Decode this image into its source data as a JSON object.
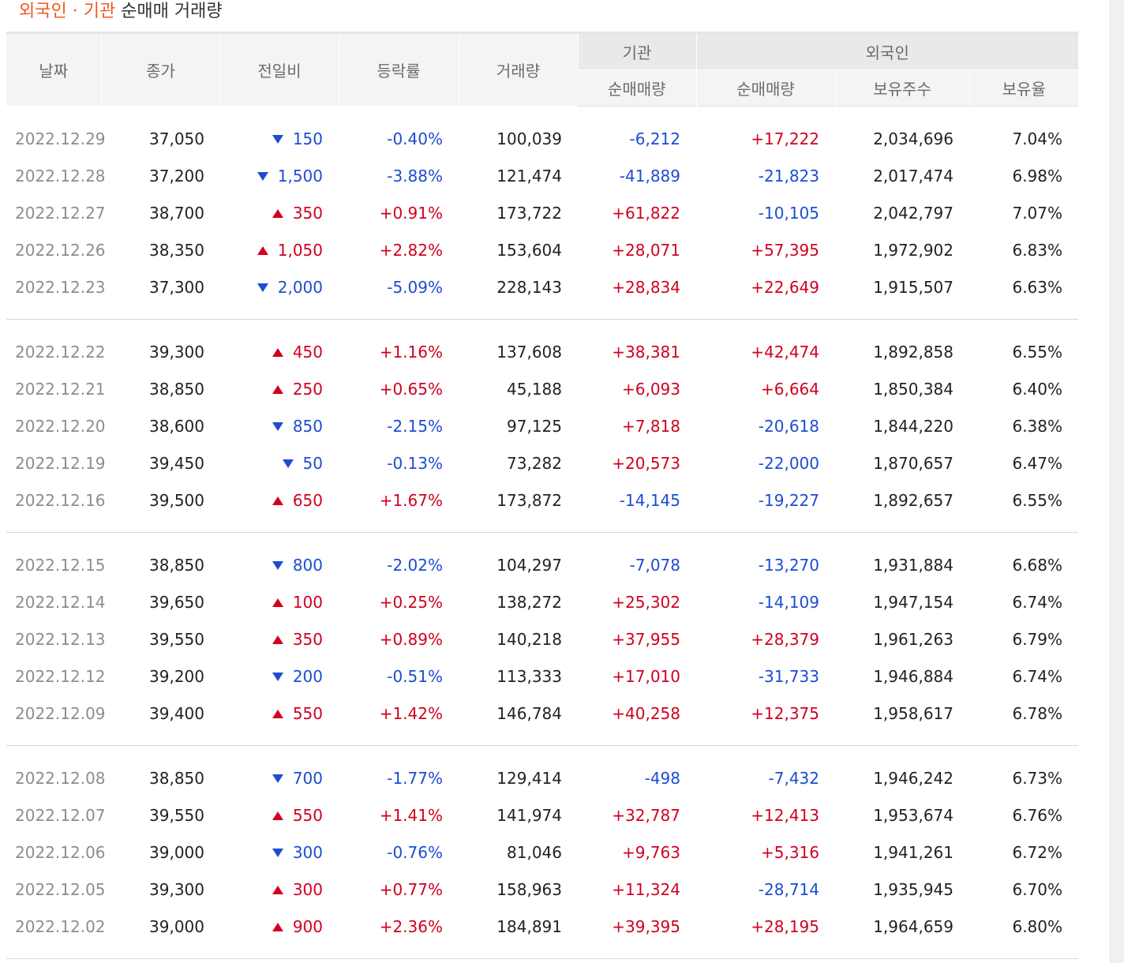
{
  "caption": {
    "highlight": "외국인 · 기관",
    "rest": "순매매 거래량"
  },
  "headers": {
    "date": "날짜",
    "close": "종가",
    "change": "전일비",
    "rate": "등락률",
    "volume": "거래량",
    "inst": "기관",
    "foreign": "외국인",
    "inst_net": "순매매량",
    "foreign_net": "순매매량",
    "foreign_hold": "보유주수",
    "foreign_ratio": "보유율"
  },
  "colors": {
    "up": "#d1001f",
    "down": "#1c4cd4",
    "accent": "#f15a22"
  },
  "groups": [
    [
      {
        "date": "2022.12.29",
        "close": "37,050",
        "dir": "down",
        "change": "150",
        "rate": "-0.40%",
        "volume": "100,039",
        "inst": "-6,212",
        "foreign": "+17,222",
        "hold": "2,034,696",
        "ratio": "7.04%"
      },
      {
        "date": "2022.12.28",
        "close": "37,200",
        "dir": "down",
        "change": "1,500",
        "rate": "-3.88%",
        "volume": "121,474",
        "inst": "-41,889",
        "foreign": "-21,823",
        "hold": "2,017,474",
        "ratio": "6.98%"
      },
      {
        "date": "2022.12.27",
        "close": "38,700",
        "dir": "up",
        "change": "350",
        "rate": "+0.91%",
        "volume": "173,722",
        "inst": "+61,822",
        "foreign": "-10,105",
        "hold": "2,042,797",
        "ratio": "7.07%"
      },
      {
        "date": "2022.12.26",
        "close": "38,350",
        "dir": "up",
        "change": "1,050",
        "rate": "+2.82%",
        "volume": "153,604",
        "inst": "+28,071",
        "foreign": "+57,395",
        "hold": "1,972,902",
        "ratio": "6.83%"
      },
      {
        "date": "2022.12.23",
        "close": "37,300",
        "dir": "down",
        "change": "2,000",
        "rate": "-5.09%",
        "volume": "228,143",
        "inst": "+28,834",
        "foreign": "+22,649",
        "hold": "1,915,507",
        "ratio": "6.63%"
      }
    ],
    [
      {
        "date": "2022.12.22",
        "close": "39,300",
        "dir": "up",
        "change": "450",
        "rate": "+1.16%",
        "volume": "137,608",
        "inst": "+38,381",
        "foreign": "+42,474",
        "hold": "1,892,858",
        "ratio": "6.55%"
      },
      {
        "date": "2022.12.21",
        "close": "38,850",
        "dir": "up",
        "change": "250",
        "rate": "+0.65%",
        "volume": "45,188",
        "inst": "+6,093",
        "foreign": "+6,664",
        "hold": "1,850,384",
        "ratio": "6.40%"
      },
      {
        "date": "2022.12.20",
        "close": "38,600",
        "dir": "down",
        "change": "850",
        "rate": "-2.15%",
        "volume": "97,125",
        "inst": "+7,818",
        "foreign": "-20,618",
        "hold": "1,844,220",
        "ratio": "6.38%"
      },
      {
        "date": "2022.12.19",
        "close": "39,450",
        "dir": "down",
        "change": "50",
        "rate": "-0.13%",
        "volume": "73,282",
        "inst": "+20,573",
        "foreign": "-22,000",
        "hold": "1,870,657",
        "ratio": "6.47%"
      },
      {
        "date": "2022.12.16",
        "close": "39,500",
        "dir": "up",
        "change": "650",
        "rate": "+1.67%",
        "volume": "173,872",
        "inst": "-14,145",
        "foreign": "-19,227",
        "hold": "1,892,657",
        "ratio": "6.55%"
      }
    ],
    [
      {
        "date": "2022.12.15",
        "close": "38,850",
        "dir": "down",
        "change": "800",
        "rate": "-2.02%",
        "volume": "104,297",
        "inst": "-7,078",
        "foreign": "-13,270",
        "hold": "1,931,884",
        "ratio": "6.68%"
      },
      {
        "date": "2022.12.14",
        "close": "39,650",
        "dir": "up",
        "change": "100",
        "rate": "+0.25%",
        "volume": "138,272",
        "inst": "+25,302",
        "foreign": "-14,109",
        "hold": "1,947,154",
        "ratio": "6.74%"
      },
      {
        "date": "2022.12.13",
        "close": "39,550",
        "dir": "up",
        "change": "350",
        "rate": "+0.89%",
        "volume": "140,218",
        "inst": "+37,955",
        "foreign": "+28,379",
        "hold": "1,961,263",
        "ratio": "6.79%"
      },
      {
        "date": "2022.12.12",
        "close": "39,200",
        "dir": "down",
        "change": "200",
        "rate": "-0.51%",
        "volume": "113,333",
        "inst": "+17,010",
        "foreign": "-31,733",
        "hold": "1,946,884",
        "ratio": "6.74%"
      },
      {
        "date": "2022.12.09",
        "close": "39,400",
        "dir": "up",
        "change": "550",
        "rate": "+1.42%",
        "volume": "146,784",
        "inst": "+40,258",
        "foreign": "+12,375",
        "hold": "1,958,617",
        "ratio": "6.78%"
      }
    ],
    [
      {
        "date": "2022.12.08",
        "close": "38,850",
        "dir": "down",
        "change": "700",
        "rate": "-1.77%",
        "volume": "129,414",
        "inst": "-498",
        "foreign": "-7,432",
        "hold": "1,946,242",
        "ratio": "6.73%"
      },
      {
        "date": "2022.12.07",
        "close": "39,550",
        "dir": "up",
        "change": "550",
        "rate": "+1.41%",
        "volume": "141,974",
        "inst": "+32,787",
        "foreign": "+12,413",
        "hold": "1,953,674",
        "ratio": "6.76%"
      },
      {
        "date": "2022.12.06",
        "close": "39,000",
        "dir": "down",
        "change": "300",
        "rate": "-0.76%",
        "volume": "81,046",
        "inst": "+9,763",
        "foreign": "+5,316",
        "hold": "1,941,261",
        "ratio": "6.72%"
      },
      {
        "date": "2022.12.05",
        "close": "39,300",
        "dir": "up",
        "change": "300",
        "rate": "+0.77%",
        "volume": "158,963",
        "inst": "+11,324",
        "foreign": "-28,714",
        "hold": "1,935,945",
        "ratio": "6.70%"
      },
      {
        "date": "2022.12.02",
        "close": "39,000",
        "dir": "up",
        "change": "900",
        "rate": "+2.36%",
        "volume": "184,891",
        "inst": "+39,395",
        "foreign": "+28,195",
        "hold": "1,964,659",
        "ratio": "6.80%"
      }
    ]
  ]
}
